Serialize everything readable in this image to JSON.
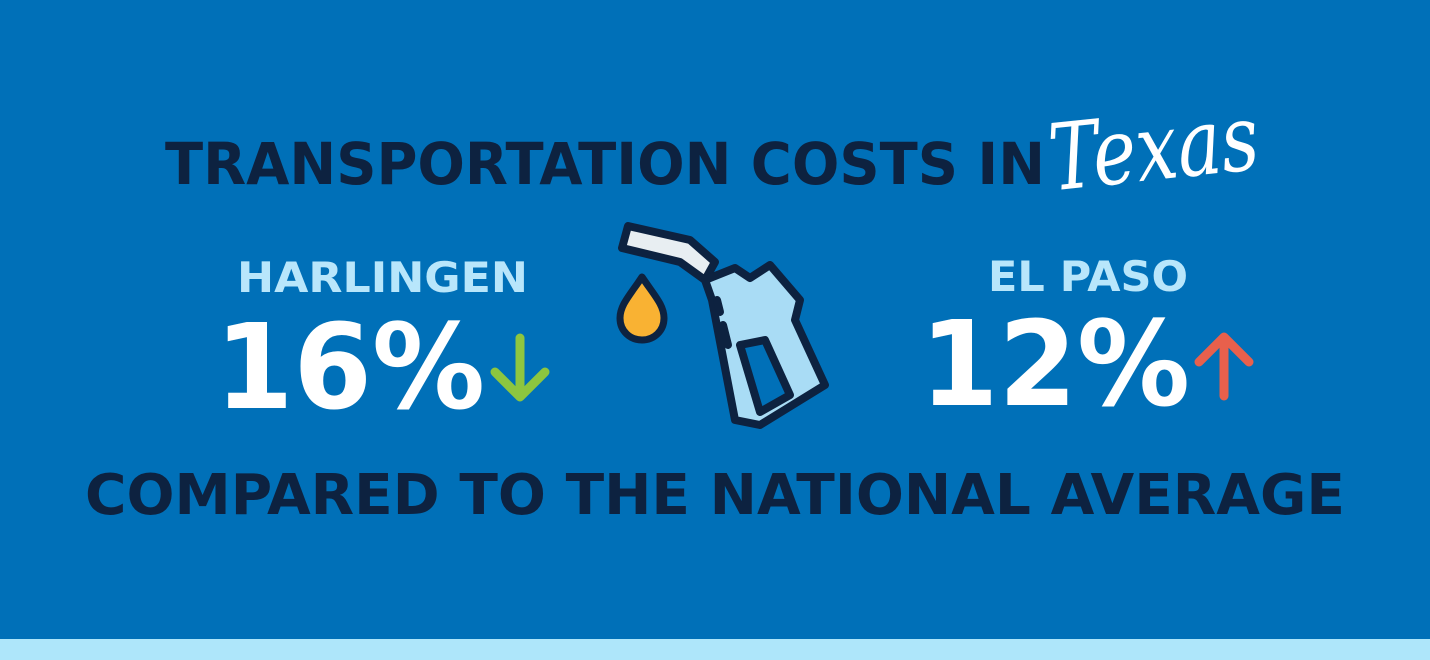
{
  "title": {
    "main": "TRANSPORTATION COSTS IN",
    "script": "Texas"
  },
  "cities": [
    {
      "name": "HARLINGEN",
      "value": "16%",
      "direction": "down",
      "arrow_icon": "arrow-down-icon",
      "arrow_color": "#8dc63f"
    },
    {
      "name": "EL PASO",
      "value": "12%",
      "direction": "up",
      "arrow_icon": "arrow-up-icon",
      "arrow_color": "#e8604c"
    }
  ],
  "subtitle": "COMPARED TO THE NATIONAL AVERAGE",
  "icons": {
    "center": "fuel-pump-nozzle-icon",
    "drop": "fuel-drop-icon"
  },
  "colors": {
    "background": "#0070b8",
    "heading": "#0d2240",
    "city_label": "#b8e6fb",
    "value": "#ffffff",
    "strip": "#aee6fa",
    "drop": "#f9b233",
    "nozzle": "#a9dcf5"
  }
}
